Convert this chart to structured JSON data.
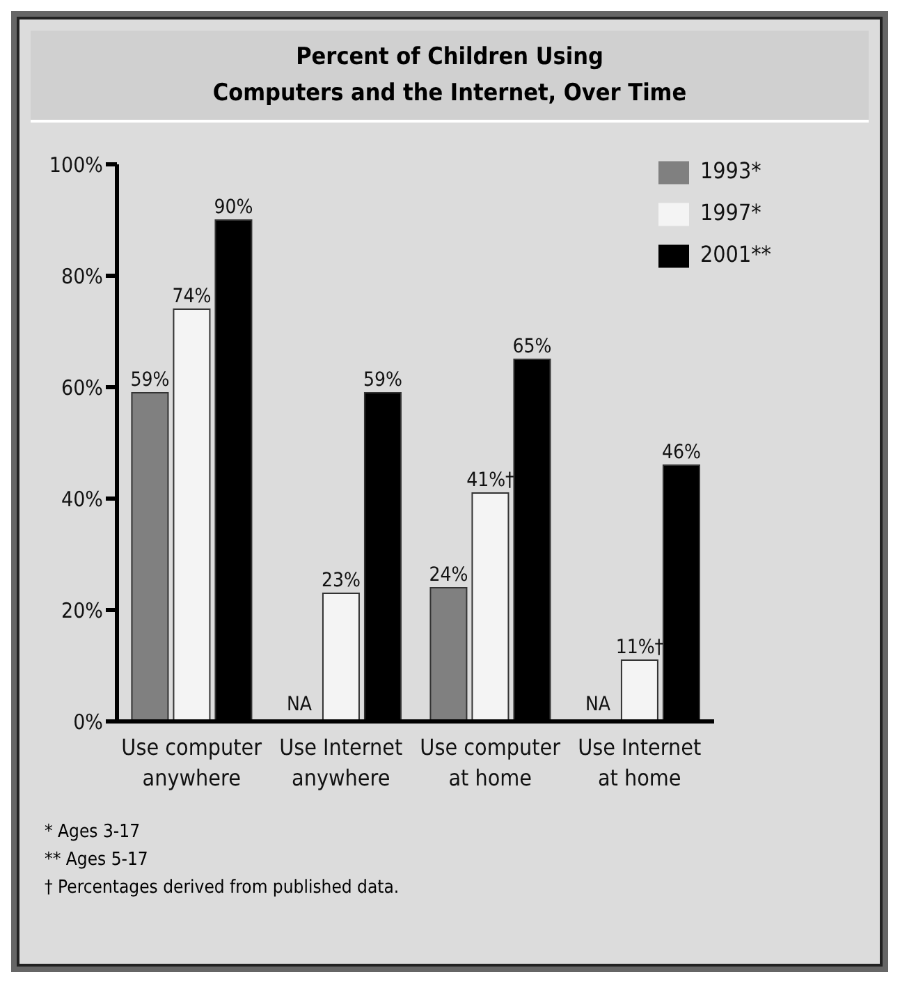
{
  "chart_data": {
    "type": "bar",
    "title": "Percent of Children Using\nComputers and the Internet, Over Time",
    "categories": [
      "Use computer\nanywhere",
      "Use Internet\nanywhere",
      "Use computer\nat home",
      "Use Internet\nat home"
    ],
    "series": [
      {
        "name": "1993*",
        "color": "#808080",
        "values": [
          59,
          null,
          24,
          null
        ],
        "value_labels": [
          "59%",
          "NA",
          "24%",
          "NA"
        ]
      },
      {
        "name": "1997*",
        "color": "#f4f4f4",
        "values": [
          74,
          23,
          41,
          11
        ],
        "value_labels": [
          "74%",
          "23%",
          "41%†",
          "11%†"
        ]
      },
      {
        "name": "2001**",
        "color": "#000000",
        "values": [
          90,
          59,
          65,
          46
        ],
        "value_labels": [
          "90%",
          "59%",
          "65%",
          "46%"
        ]
      }
    ],
    "ylim": [
      0,
      100
    ],
    "yticks": [
      {
        "value": 0,
        "label": "0%"
      },
      {
        "value": 20,
        "label": "20%"
      },
      {
        "value": 40,
        "label": "40%"
      },
      {
        "value": 60,
        "label": "60%"
      },
      {
        "value": 80,
        "label": "80%"
      },
      {
        "value": 100,
        "label": "100%"
      }
    ],
    "legend": "top right",
    "annotations": [
      "*  Ages 3-17",
      "**  Ages 5-17",
      "†  Percentages derived from published data."
    ]
  }
}
